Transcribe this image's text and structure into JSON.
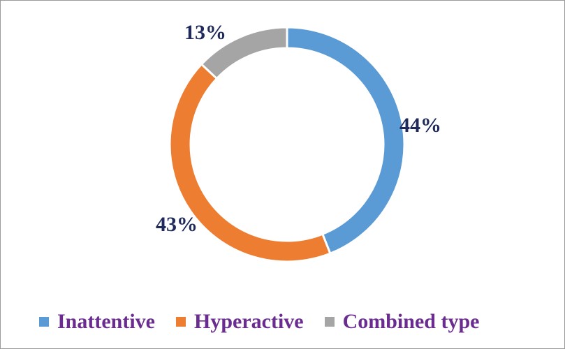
{
  "chart_data": {
    "type": "pie",
    "variant": "doughnut",
    "categories": [
      "Inattentive",
      "Hyperactive",
      "Combined type"
    ],
    "values": [
      44,
      43,
      13
    ],
    "labels": [
      "44%",
      "43%",
      "13%"
    ],
    "colors": [
      "#5b9bd5",
      "#ed7d31",
      "#a5a5a5"
    ],
    "legend_position": "bottom",
    "start_angle_deg": 0,
    "direction": "clockwise"
  }
}
